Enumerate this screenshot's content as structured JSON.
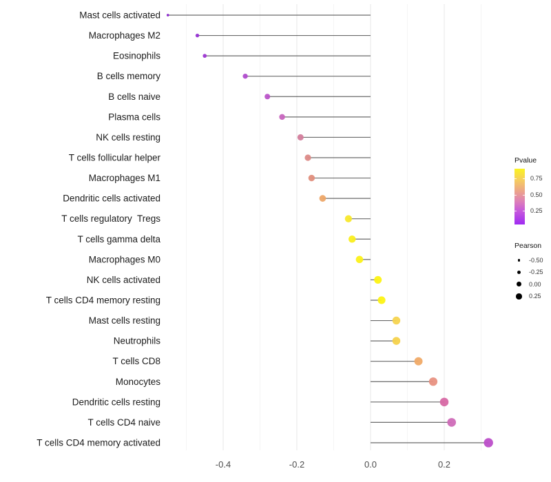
{
  "chart_data": {
    "type": "bar",
    "variant": "lollipop",
    "orientation": "horizontal",
    "title": "",
    "xlabel": "",
    "ylabel": "",
    "xlim": [
      -0.57,
      0.33
    ],
    "x_ticks": [
      -0.4,
      -0.2,
      0.0,
      0.2
    ],
    "x_tick_labels": [
      "-0.4",
      "-0.2",
      "0.0",
      "0.2"
    ],
    "grid": "on",
    "baseline": 0,
    "rows": [
      {
        "label": "Mast cells activated",
        "pearson": -0.55,
        "color": "#8B27CF"
      },
      {
        "label": "Macrophages M2",
        "pearson": -0.47,
        "color": "#9633D3"
      },
      {
        "label": "Eosinophils",
        "pearson": -0.45,
        "color": "#9D36D2"
      },
      {
        "label": "B cells memory",
        "pearson": -0.34,
        "color": "#B04CCE"
      },
      {
        "label": "B cells naive",
        "pearson": -0.28,
        "color": "#BB54C9"
      },
      {
        "label": "Plasma cells",
        "pearson": -0.24,
        "color": "#C765BE"
      },
      {
        "label": "NK cells resting",
        "pearson": -0.19,
        "color": "#D37D9C"
      },
      {
        "label": "T cells follicular helper",
        "pearson": -0.17,
        "color": "#DC8A87"
      },
      {
        "label": "Macrophages M1",
        "pearson": -0.16,
        "color": "#E08E7C"
      },
      {
        "label": "Dendritic cells activated",
        "pearson": -0.13,
        "color": "#EDA668"
      },
      {
        "label": "T cells regulatory  Tregs",
        "pearson": -0.06,
        "color": "#F8E82C"
      },
      {
        "label": "T cells gamma delta",
        "pearson": -0.05,
        "color": "#FAEE1D"
      },
      {
        "label": "Macrophages M0",
        "pearson": -0.03,
        "color": "#FCF119"
      },
      {
        "label": "NK cells activated",
        "pearson": 0.02,
        "color": "#FDF313"
      },
      {
        "label": "T cells CD4 memory resting",
        "pearson": 0.03,
        "color": "#FDF313"
      },
      {
        "label": "Mast cells resting",
        "pearson": 0.07,
        "color": "#F6D450"
      },
      {
        "label": "Neutrophils",
        "pearson": 0.07,
        "color": "#F5D24C"
      },
      {
        "label": "T cells CD8",
        "pearson": 0.13,
        "color": "#F0AA67"
      },
      {
        "label": "Monocytes",
        "pearson": 0.17,
        "color": "#E89181"
      },
      {
        "label": "Dendritic cells resting",
        "pearson": 0.2,
        "color": "#D768A4"
      },
      {
        "label": "T cells CD4 naive",
        "pearson": 0.22,
        "color": "#CF6CB8"
      },
      {
        "label": "T cells CD4 memory activated",
        "pearson": 0.32,
        "color": "#BC4EC9"
      }
    ],
    "legend_pvalue": {
      "title": "Pvalue",
      "tick_labels": [
        "0.75",
        "0.50",
        "0.25"
      ],
      "tick_positions_pct": [
        18.5,
        48.0,
        76.5
      ],
      "gradient_stops": [
        {
          "pct": 0,
          "color": "#FBF320"
        },
        {
          "pct": 20,
          "color": "#F6CE5E"
        },
        {
          "pct": 40,
          "color": "#ECA489"
        },
        {
          "pct": 58,
          "color": "#DE81B7"
        },
        {
          "pct": 75,
          "color": "#C75BDB"
        },
        {
          "pct": 100,
          "color": "#9F2BF2"
        }
      ]
    },
    "legend_pearson": {
      "title": "Pearson",
      "items": [
        {
          "label": "-0.50",
          "value": -0.5
        },
        {
          "label": "-0.25",
          "value": -0.25
        },
        {
          "label": "0.00",
          "value": 0.0
        },
        {
          "label": "0.25",
          "value": 0.25
        }
      ]
    },
    "colors": {
      "stem": "#444444",
      "grid_major": "#E7E7E7",
      "grid_minor": "#F4F4F4",
      "axis_text": "#4D4D4D",
      "label_text": "#1B1B1B",
      "legend_dot": "#000000",
      "background": "#FFFFFF"
    }
  }
}
